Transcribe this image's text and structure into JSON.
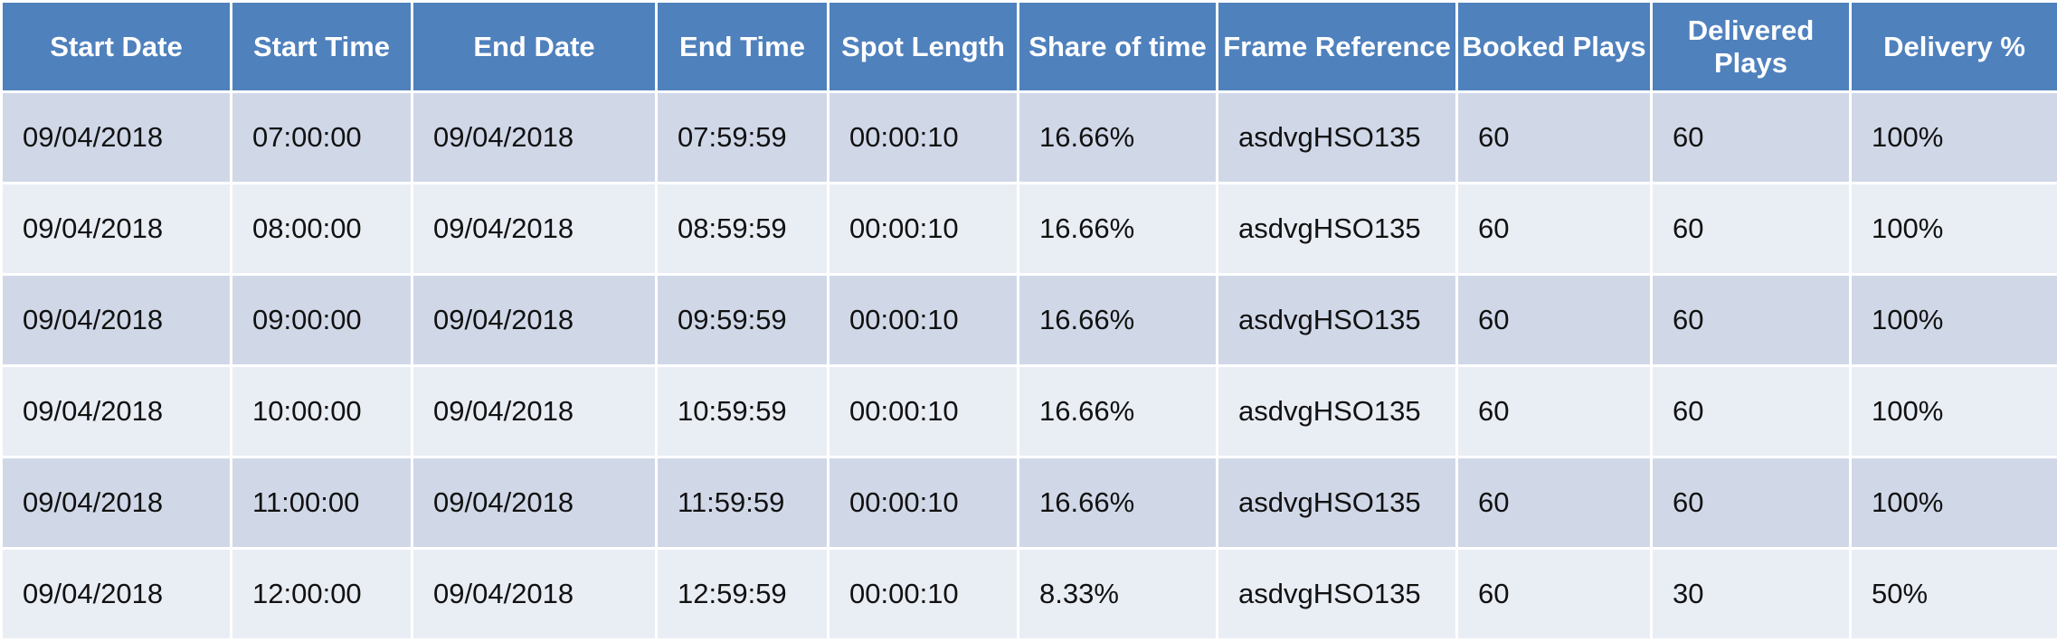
{
  "table": {
    "columns": [
      "Start Date",
      "Start Time",
      "End Date",
      "End Time",
      "Spot Length",
      "Share of time",
      "Frame Reference",
      "Booked Plays",
      "Delivered Plays",
      "Delivery %"
    ],
    "rows": [
      [
        "09/04/2018",
        "07:00:00",
        "09/04/2018",
        "07:59:59",
        "00:00:10",
        "16.66%",
        "asdvgHSO135",
        "60",
        "60",
        "100%"
      ],
      [
        "09/04/2018",
        "08:00:00",
        "09/04/2018",
        "08:59:59",
        "00:00:10",
        "16.66%",
        "asdvgHSO135",
        "60",
        "60",
        "100%"
      ],
      [
        "09/04/2018",
        "09:00:00",
        "09/04/2018",
        "09:59:59",
        "00:00:10",
        "16.66%",
        "asdvgHSO135",
        "60",
        "60",
        "100%"
      ],
      [
        "09/04/2018",
        "10:00:00",
        "09/04/2018",
        "10:59:59",
        "00:00:10",
        "16.66%",
        "asdvgHSO135",
        "60",
        "60",
        "100%"
      ],
      [
        "09/04/2018",
        "11:00:00",
        "09/04/2018",
        "11:59:59",
        "00:00:10",
        "16.66%",
        "asdvgHSO135",
        "60",
        "60",
        "100%"
      ],
      [
        "09/04/2018",
        "12:00:00",
        "09/04/2018",
        "12:59:59",
        "00:00:10",
        "8.33%",
        "asdvgHSO135",
        "60",
        "30",
        "50%"
      ]
    ]
  },
  "colors": {
    "header_bg": "#4f81bd",
    "header_text": "#ffffff",
    "row_odd_bg": "#d0d8e8",
    "row_even_bg": "#e9edf4",
    "cell_text": "#111111"
  }
}
